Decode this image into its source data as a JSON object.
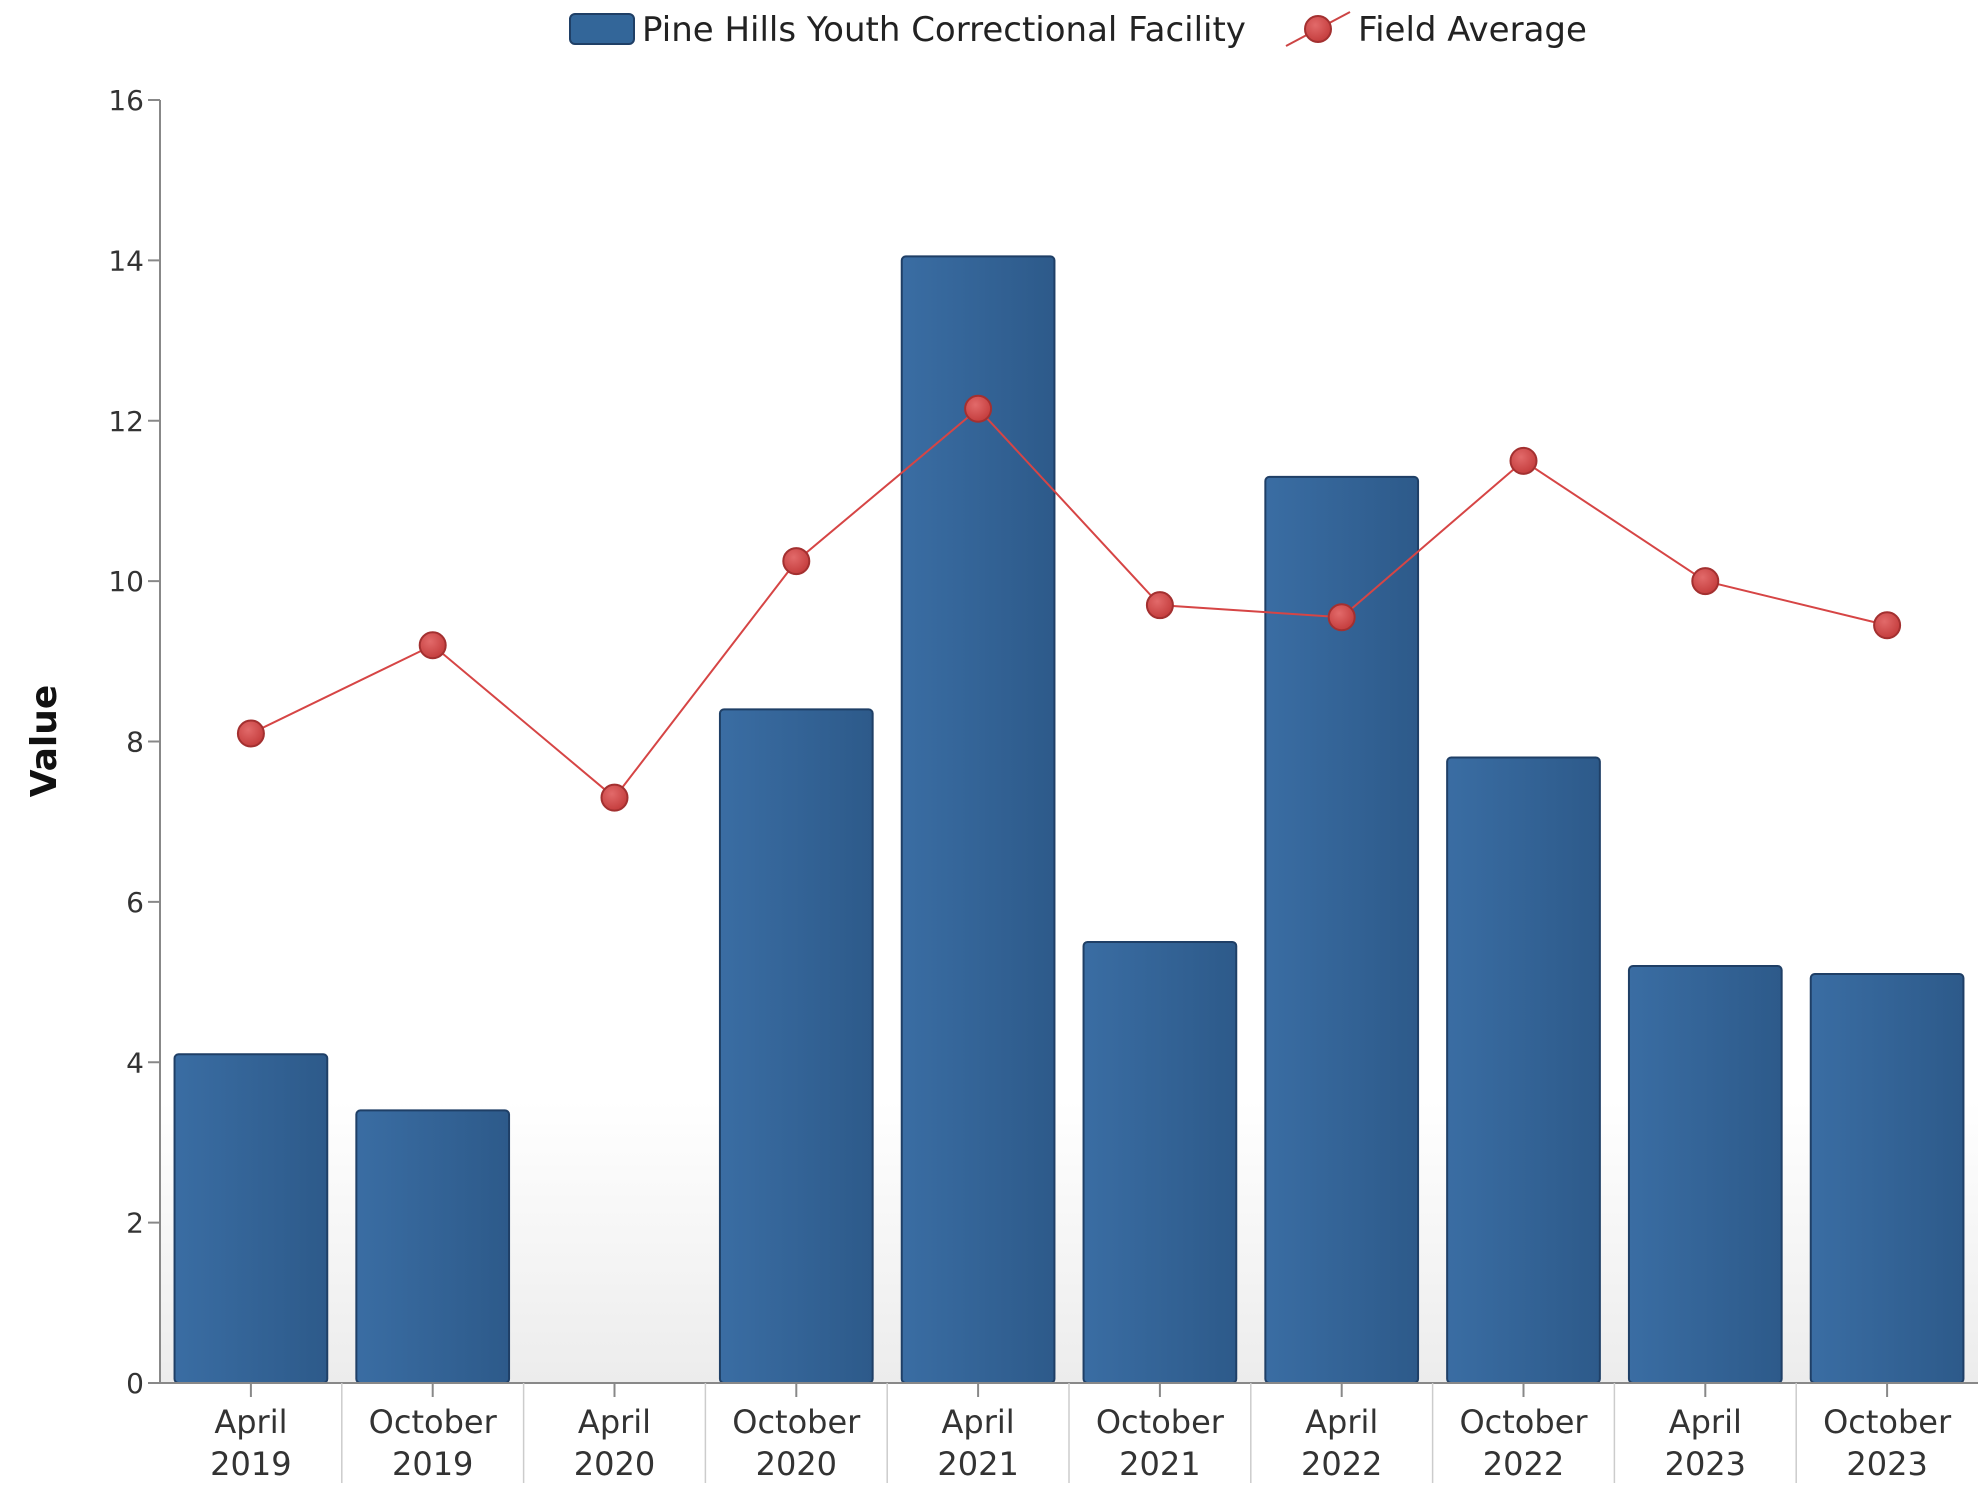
{
  "chart_data": {
    "type": "bar",
    "title": "",
    "xlabel": "",
    "ylabel": "Value",
    "ylim": [
      0,
      16
    ],
    "yticks": [
      0,
      2,
      4,
      6,
      8,
      10,
      12,
      14,
      16
    ],
    "grid": false,
    "legend": "top-center",
    "categories": [
      [
        "April",
        "2019"
      ],
      [
        "October",
        "2019"
      ],
      [
        "April",
        "2020"
      ],
      [
        "October",
        "2020"
      ],
      [
        "April",
        "2021"
      ],
      [
        "October",
        "2021"
      ],
      [
        "April",
        "2022"
      ],
      [
        "October",
        "2022"
      ],
      [
        "April",
        "2023"
      ],
      [
        "October",
        "2023"
      ]
    ],
    "series": [
      {
        "name": "Pine Hills Youth Correctional Facility",
        "type": "bar",
        "color": "#336699",
        "values": [
          4.1,
          3.4,
          null,
          8.4,
          14.05,
          5.5,
          11.3,
          7.8,
          5.2,
          5.1
        ]
      },
      {
        "name": "Field Average",
        "type": "line",
        "color": "#cc4444",
        "values": [
          8.1,
          9.2,
          7.3,
          10.25,
          12.15,
          9.7,
          9.55,
          11.5,
          10.0,
          9.45
        ]
      }
    ]
  }
}
